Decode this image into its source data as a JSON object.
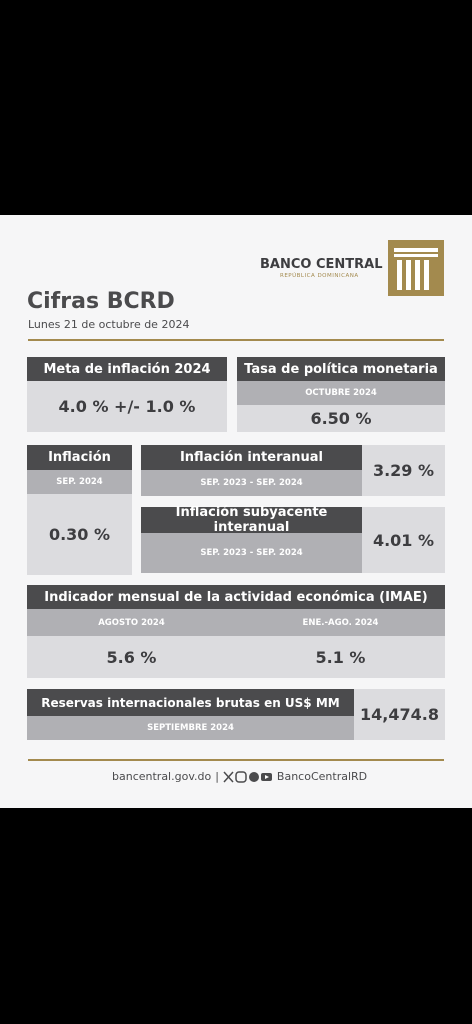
{
  "header": {
    "bank_name": "BANCO CENTRAL",
    "bank_subtitle": "REPÚBLICA DOMINICANA",
    "title": "Cifras BCRD",
    "date": "Lunes 21 de octubre de 2024"
  },
  "cards": {
    "inflation_target": {
      "title": "Meta de inflación 2024",
      "value": "4.0 % +/- 1.0 %"
    },
    "policy_rate": {
      "title": "Tasa de política monetaria",
      "period": "OCTUBRE 2024",
      "value": "6.50 %"
    },
    "inflation": {
      "title": "Inflación",
      "period": "SEP. 2024",
      "value": "0.30 %"
    },
    "yoy_inflation": {
      "title": "Inflación interanual",
      "period": "SEP. 2023 - SEP. 2024",
      "value": "3.29 %"
    },
    "core_inflation": {
      "title": "Inflación subyacente interanual",
      "period": "SEP. 2023 - SEP. 2024",
      "value": "4.01 %"
    },
    "imae": {
      "title": "Indicador mensual de la actividad económica (IMAE)",
      "periods": [
        {
          "period": "AGOSTO 2024",
          "value": "5.6 %"
        },
        {
          "period": "ENE.-AGO. 2024",
          "value": "5.1 %"
        }
      ]
    },
    "reserves": {
      "title": "Reservas internacionales brutas en US$ MM",
      "period": "SEPTIEMBRE 2024",
      "value": "14,474.8"
    }
  },
  "footer": {
    "website": "bancentral.gov.do",
    "separator": "|",
    "handle": "BancoCentralRD"
  }
}
